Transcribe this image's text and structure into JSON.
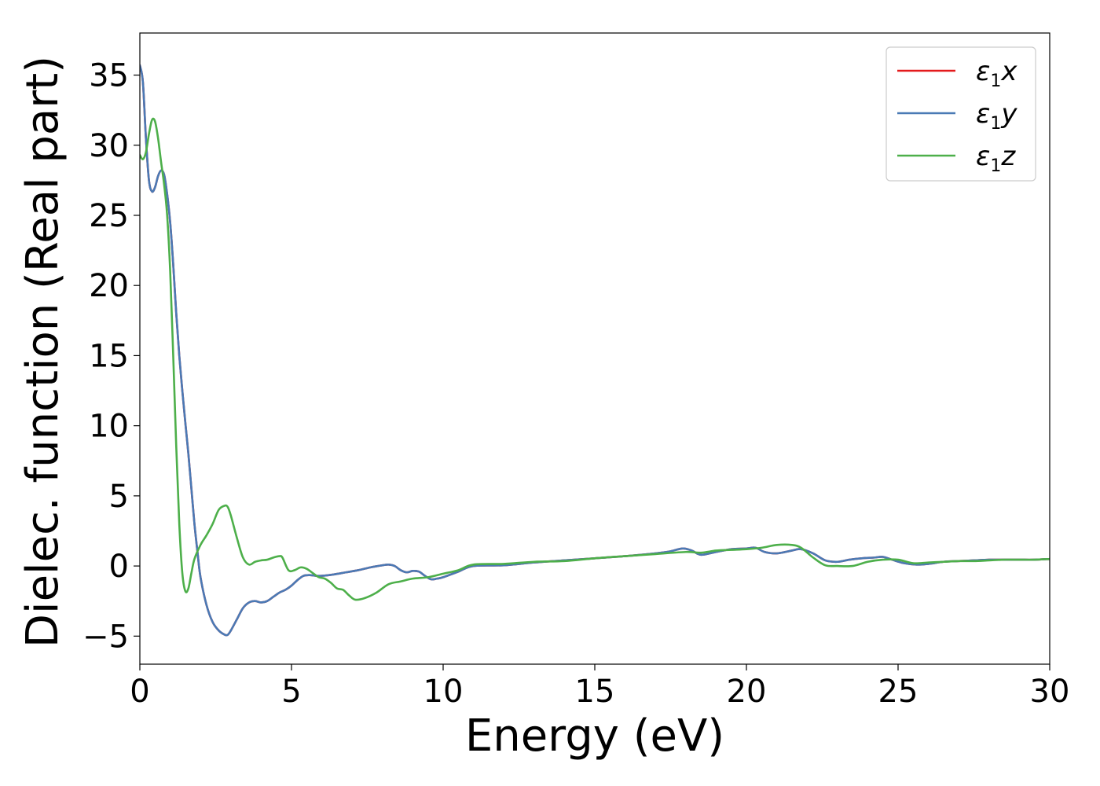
{
  "chart_data": {
    "type": "line",
    "title": "",
    "xlabel": "Energy (eV)",
    "ylabel": "Dielec. function (Real part)",
    "xlim": [
      0,
      30
    ],
    "ylim": [
      -7,
      38
    ],
    "xticks": [
      0,
      5,
      10,
      15,
      20,
      25,
      30
    ],
    "xtick_labels": [
      "0",
      "5",
      "10",
      "15",
      "20",
      "25",
      "30"
    ],
    "yticks": [
      -5,
      0,
      5,
      10,
      15,
      20,
      25,
      30,
      35
    ],
    "ytick_labels": [
      "−5",
      "0",
      "5",
      "10",
      "15",
      "20",
      "25",
      "30",
      "35"
    ],
    "grid": false,
    "legend_position": "top-right",
    "series": [
      {
        "name": "ε₁x",
        "legend_main": "ε",
        "legend_sub": "1",
        "legend_axis": "x",
        "color": "#e41a1c",
        "x": [
          0,
          0.1,
          0.2,
          0.3,
          0.4,
          0.5,
          0.6,
          0.7,
          0.8,
          0.9,
          1.0,
          1.1,
          1.2,
          1.3,
          1.4,
          1.5,
          1.6,
          1.7,
          1.8,
          1.9,
          2.0,
          2.2,
          2.4,
          2.6,
          2.8,
          2.9,
          3.0,
          3.2,
          3.4,
          3.6,
          3.8,
          4.0,
          4.2,
          4.4,
          4.6,
          4.8,
          5.0,
          5.2,
          5.4,
          5.6,
          5.8,
          6.0,
          6.4,
          6.8,
          7.2,
          7.6,
          8.0,
          8.2,
          8.4,
          8.6,
          8.8,
          9.0,
          9.2,
          9.4,
          9.6,
          9.8,
          10.0,
          10.5,
          11.0,
          12.0,
          13.0,
          14.0,
          15.0,
          16.0,
          17.0,
          17.5,
          17.9,
          18.2,
          18.5,
          19.0,
          19.5,
          20.0,
          20.3,
          20.6,
          21.0,
          21.5,
          21.8,
          22.2,
          22.6,
          23.0,
          23.4,
          23.8,
          24.2,
          24.5,
          24.8,
          25.2,
          25.6,
          26.0,
          26.5,
          27.0,
          27.5,
          28.0,
          28.5,
          29.0,
          29.5,
          30.0
        ],
        "y": [
          35.7,
          34.5,
          30.5,
          27.5,
          26.7,
          27.0,
          27.8,
          28.2,
          27.9,
          26.5,
          24.5,
          21.5,
          18.0,
          15.0,
          12.5,
          10.2,
          8.0,
          5.5,
          3.0,
          1.0,
          -0.8,
          -2.8,
          -4.0,
          -4.6,
          -4.9,
          -4.9,
          -4.6,
          -3.8,
          -3.0,
          -2.6,
          -2.5,
          -2.6,
          -2.5,
          -2.2,
          -1.9,
          -1.7,
          -1.4,
          -1.0,
          -0.7,
          -0.65,
          -0.7,
          -0.7,
          -0.6,
          -0.45,
          -0.3,
          -0.1,
          0.05,
          0.1,
          0.0,
          -0.3,
          -0.45,
          -0.35,
          -0.4,
          -0.7,
          -0.95,
          -0.9,
          -0.8,
          -0.4,
          0.0,
          0.05,
          0.25,
          0.4,
          0.55,
          0.7,
          0.9,
          1.05,
          1.25,
          1.1,
          0.8,
          1.0,
          1.2,
          1.25,
          1.3,
          1.0,
          0.9,
          1.1,
          1.2,
          0.9,
          0.4,
          0.3,
          0.45,
          0.55,
          0.6,
          0.65,
          0.45,
          0.2,
          0.1,
          0.15,
          0.3,
          0.35,
          0.4,
          0.45,
          0.45,
          0.45,
          0.45,
          0.5
        ]
      },
      {
        "name": "ε₁y",
        "legend_main": "ε",
        "legend_sub": "1",
        "legend_axis": "y",
        "color": "#4a7ab5",
        "x": [
          0,
          0.1,
          0.2,
          0.3,
          0.4,
          0.5,
          0.6,
          0.7,
          0.8,
          0.9,
          1.0,
          1.1,
          1.2,
          1.3,
          1.4,
          1.5,
          1.6,
          1.7,
          1.8,
          1.9,
          2.0,
          2.2,
          2.4,
          2.6,
          2.8,
          2.9,
          3.0,
          3.2,
          3.4,
          3.6,
          3.8,
          4.0,
          4.2,
          4.4,
          4.6,
          4.8,
          5.0,
          5.2,
          5.4,
          5.6,
          5.8,
          6.0,
          6.4,
          6.8,
          7.2,
          7.6,
          8.0,
          8.2,
          8.4,
          8.6,
          8.8,
          9.0,
          9.2,
          9.4,
          9.6,
          9.8,
          10.0,
          10.5,
          11.0,
          12.0,
          13.0,
          14.0,
          15.0,
          16.0,
          17.0,
          17.5,
          17.9,
          18.2,
          18.5,
          19.0,
          19.5,
          20.0,
          20.3,
          20.6,
          21.0,
          21.5,
          21.8,
          22.2,
          22.6,
          23.0,
          23.4,
          23.8,
          24.2,
          24.5,
          24.8,
          25.2,
          25.6,
          26.0,
          26.5,
          27.0,
          27.5,
          28.0,
          28.5,
          29.0,
          29.5,
          30.0
        ],
        "y": [
          35.7,
          34.5,
          30.5,
          27.5,
          26.7,
          27.0,
          27.8,
          28.2,
          27.9,
          26.5,
          24.5,
          21.5,
          18.0,
          15.0,
          12.5,
          10.2,
          8.0,
          5.5,
          3.0,
          1.0,
          -0.8,
          -2.8,
          -4.0,
          -4.6,
          -4.9,
          -4.9,
          -4.6,
          -3.8,
          -3.0,
          -2.6,
          -2.5,
          -2.6,
          -2.5,
          -2.2,
          -1.9,
          -1.7,
          -1.4,
          -1.0,
          -0.7,
          -0.65,
          -0.7,
          -0.7,
          -0.6,
          -0.45,
          -0.3,
          -0.1,
          0.05,
          0.1,
          0.0,
          -0.3,
          -0.45,
          -0.35,
          -0.4,
          -0.7,
          -0.95,
          -0.9,
          -0.8,
          -0.4,
          0.0,
          0.05,
          0.25,
          0.4,
          0.55,
          0.7,
          0.9,
          1.05,
          1.25,
          1.1,
          0.8,
          1.0,
          1.2,
          1.25,
          1.3,
          1.0,
          0.9,
          1.1,
          1.2,
          0.9,
          0.4,
          0.3,
          0.45,
          0.55,
          0.6,
          0.65,
          0.45,
          0.2,
          0.1,
          0.15,
          0.3,
          0.35,
          0.4,
          0.45,
          0.45,
          0.45,
          0.45,
          0.5
        ]
      },
      {
        "name": "ε₁z",
        "legend_main": "ε",
        "legend_sub": "1",
        "legend_axis": "z",
        "color": "#4daf4a",
        "x": [
          0,
          0.1,
          0.2,
          0.3,
          0.4,
          0.5,
          0.6,
          0.7,
          0.8,
          0.9,
          1.0,
          1.1,
          1.2,
          1.3,
          1.4,
          1.5,
          1.6,
          1.7,
          1.8,
          2.0,
          2.2,
          2.4,
          2.6,
          2.8,
          2.9,
          3.0,
          3.2,
          3.4,
          3.6,
          3.8,
          4.0,
          4.2,
          4.4,
          4.6,
          4.7,
          4.9,
          5.1,
          5.3,
          5.5,
          5.7,
          5.9,
          6.1,
          6.3,
          6.5,
          6.7,
          6.9,
          7.1,
          7.4,
          7.8,
          8.2,
          8.6,
          9.0,
          9.5,
          10.0,
          10.5,
          11.0,
          12.0,
          13.0,
          14.0,
          15.0,
          16.0,
          17.0,
          18.0,
          18.5,
          19.0,
          19.5,
          20.0,
          20.5,
          21.0,
          21.5,
          21.8,
          22.2,
          22.6,
          23.0,
          23.5,
          24.0,
          24.5,
          25.0,
          25.5,
          26.0,
          26.5,
          27.0,
          27.5,
          28.0,
          28.5,
          29.0,
          29.5,
          30.0
        ],
        "y": [
          29.3,
          29.0,
          29.5,
          30.8,
          31.8,
          31.7,
          30.5,
          28.8,
          27.2,
          25.0,
          21.0,
          15.0,
          8.5,
          3.0,
          -0.5,
          -1.8,
          -1.6,
          -0.5,
          0.5,
          1.5,
          2.2,
          3.0,
          4.0,
          4.3,
          4.2,
          3.6,
          2.0,
          0.6,
          0.1,
          0.3,
          0.4,
          0.45,
          0.6,
          0.7,
          0.6,
          -0.3,
          -0.3,
          -0.1,
          -0.2,
          -0.5,
          -0.8,
          -0.9,
          -1.2,
          -1.6,
          -1.7,
          -2.1,
          -2.4,
          -2.3,
          -1.9,
          -1.3,
          -1.1,
          -0.9,
          -0.8,
          -0.55,
          -0.3,
          0.1,
          0.15,
          0.3,
          0.35,
          0.55,
          0.7,
          0.85,
          1.0,
          0.95,
          1.1,
          1.15,
          1.2,
          1.3,
          1.5,
          1.5,
          1.3,
          0.6,
          0.05,
          0.0,
          0.0,
          0.3,
          0.45,
          0.45,
          0.2,
          0.25,
          0.3,
          0.35,
          0.35,
          0.4,
          0.45,
          0.45,
          0.45,
          0.5
        ]
      }
    ]
  }
}
